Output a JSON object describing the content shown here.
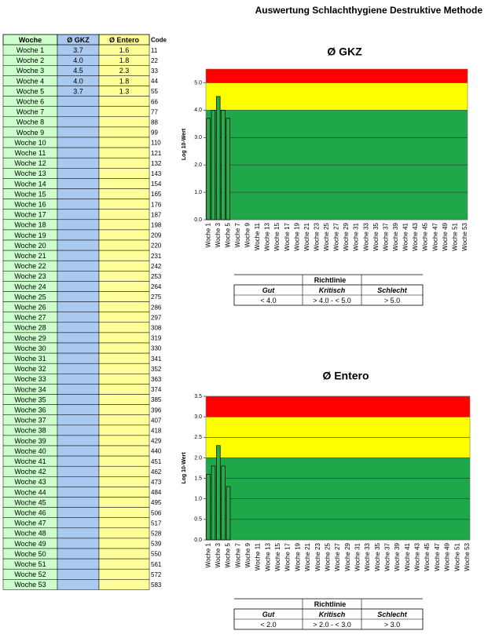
{
  "title": "Auswertung Schlachthygiene Destruktive Methode",
  "table": {
    "headers": [
      "Woche",
      "Ø GKZ",
      "Ø Entero",
      "Code"
    ],
    "rows": [
      [
        "Woche 1",
        "3.7",
        "1.6",
        "11"
      ],
      [
        "Woche 2",
        "4.0",
        "1.8",
        "22"
      ],
      [
        "Woche 3",
        "4.5",
        "2.3",
        "33"
      ],
      [
        "Woche 4",
        "4.0",
        "1.8",
        "44"
      ],
      [
        "Woche 5",
        "3.7",
        "1.3",
        "55"
      ],
      [
        "Woche 6",
        null,
        null,
        "66"
      ],
      [
        "Woche 7",
        null,
        null,
        "77"
      ],
      [
        "Woche 8",
        null,
        null,
        "88"
      ],
      [
        "Woche 9",
        null,
        null,
        "99"
      ],
      [
        "Woche 10",
        null,
        null,
        "110"
      ],
      [
        "Woche 11",
        null,
        null,
        "121"
      ],
      [
        "Woche 12",
        null,
        null,
        "132"
      ],
      [
        "Woche 13",
        null,
        null,
        "143"
      ],
      [
        "Woche 14",
        null,
        null,
        "154"
      ],
      [
        "Woche 15",
        null,
        null,
        "165"
      ],
      [
        "Woche 16",
        null,
        null,
        "176"
      ],
      [
        "Woche 17",
        null,
        null,
        "187"
      ],
      [
        "Woche 18",
        null,
        null,
        "198"
      ],
      [
        "Woche 19",
        null,
        null,
        "209"
      ],
      [
        "Woche 20",
        null,
        null,
        "220"
      ],
      [
        "Woche 21",
        null,
        null,
        "231"
      ],
      [
        "Woche 22",
        null,
        null,
        "242"
      ],
      [
        "Woche 23",
        null,
        null,
        "253"
      ],
      [
        "Woche 24",
        null,
        null,
        "264"
      ],
      [
        "Woche 25",
        null,
        null,
        "275"
      ],
      [
        "Woche 26",
        null,
        null,
        "286"
      ],
      [
        "Woche 27",
        null,
        null,
        "297"
      ],
      [
        "Woche 28",
        null,
        null,
        "308"
      ],
      [
        "Woche 29",
        null,
        null,
        "319"
      ],
      [
        "Woche 30",
        null,
        null,
        "330"
      ],
      [
        "Woche 31",
        null,
        null,
        "341"
      ],
      [
        "Woche 32",
        null,
        null,
        "352"
      ],
      [
        "Woche 33",
        null,
        null,
        "363"
      ],
      [
        "Woche 34",
        null,
        null,
        "374"
      ],
      [
        "Woche 35",
        null,
        null,
        "385"
      ],
      [
        "Woche 36",
        null,
        null,
        "396"
      ],
      [
        "Woche 37",
        null,
        null,
        "407"
      ],
      [
        "Woche 38",
        null,
        null,
        "418"
      ],
      [
        "Woche 39",
        null,
        null,
        "429"
      ],
      [
        "Woche 40",
        null,
        null,
        "440"
      ],
      [
        "Woche 41",
        null,
        null,
        "451"
      ],
      [
        "Woche 42",
        null,
        null,
        "462"
      ],
      [
        "Woche 43",
        null,
        null,
        "473"
      ],
      [
        "Woche 44",
        null,
        null,
        "484"
      ],
      [
        "Woche 45",
        null,
        null,
        "495"
      ],
      [
        "Woche 46",
        null,
        null,
        "506"
      ],
      [
        "Woche 47",
        null,
        null,
        "517"
      ],
      [
        "Woche 48",
        null,
        null,
        "528"
      ],
      [
        "Woche 49",
        null,
        null,
        "539"
      ],
      [
        "Woche 50",
        null,
        null,
        "550"
      ],
      [
        "Woche 51",
        null,
        null,
        "561"
      ],
      [
        "Woche 52",
        null,
        null,
        "572"
      ],
      [
        "Woche 53",
        null,
        null,
        "583"
      ]
    ]
  },
  "chart_data": [
    {
      "type": "bar",
      "title": "Ø GKZ",
      "y_label": "Log 10-Wert",
      "color": "#2eaa4e",
      "categories": [
        "Woche 1",
        null,
        "Woche 3",
        null,
        "Woche 5",
        null,
        "Woche 7",
        null,
        "Woche 9",
        null,
        "Woche 11",
        null,
        "Woche 13",
        null,
        "Woche 15",
        null,
        "Woche 17",
        null,
        "Woche 19",
        null,
        "Woche 21",
        null,
        "Woche 23",
        null,
        "Woche 25",
        null,
        "Woche 27",
        null,
        "Woche 29",
        null,
        "Woche 31",
        null,
        "Woche 33",
        null,
        "Woche 35",
        null,
        "Woche 37",
        null,
        "Woche 39",
        null,
        "Woche 41",
        null,
        "Woche 43",
        null,
        "Woche 45",
        null,
        "Woche 47",
        null,
        "Woche 49",
        null,
        "Woche 51",
        null,
        "Woche 53"
      ],
      "values": [
        3.7,
        4.0,
        4.5,
        4.0,
        3.7,
        null,
        null,
        null,
        null,
        null,
        null,
        null,
        null,
        null,
        null,
        null,
        null,
        null,
        null,
        null,
        null,
        null,
        null,
        null,
        null,
        null,
        null,
        null,
        null,
        null,
        null,
        null,
        null,
        null,
        null,
        null,
        null,
        null,
        null,
        null,
        null,
        null,
        null,
        null,
        null,
        null,
        null,
        null,
        null,
        null,
        null,
        null,
        null
      ],
      "ylim": [
        0,
        5.5
      ],
      "yticks": [
        {
          "value": 0,
          "label": "0.0"
        },
        {
          "value": 1,
          "label": "1.0"
        },
        {
          "value": 2,
          "label": "2.0"
        },
        {
          "value": 3,
          "label": "3.0"
        },
        {
          "value": 4,
          "label": "4.0"
        },
        {
          "value": 5,
          "label": "5.0"
        }
      ],
      "bands": [
        {
          "from": 0,
          "to": 4,
          "color": "#1ea84a"
        },
        {
          "from": 4,
          "to": 5,
          "color": "#ffff00"
        },
        {
          "from": 5,
          "to": 5.5,
          "color": "#ff0000"
        }
      ],
      "guideline": {
        "title": "Richtlinie",
        "headers": [
          "Gut",
          "Kritisch",
          "Schlecht"
        ],
        "values": [
          "< 4.0",
          "> 4.0  - < 5.0",
          "> 5.0"
        ]
      }
    },
    {
      "type": "bar",
      "title": "Ø Entero",
      "y_label": "Log 10-Wert",
      "color": "#2eaa4e",
      "categories": [
        "Woche 1",
        null,
        "Woche 3",
        null,
        "Woche 5",
        null,
        "Woche 7",
        null,
        "Woche 9",
        null,
        "Woche 11",
        null,
        "Woche 13",
        null,
        "Woche 15",
        null,
        "Woche 17",
        null,
        "Woche 19",
        null,
        "Woche 21",
        null,
        "Woche 23",
        null,
        "Woche 25",
        null,
        "Woche 27",
        null,
        "Woche 29",
        null,
        "Woche 31",
        null,
        "Woche 33",
        null,
        "Woche 35",
        null,
        "Woche 37",
        null,
        "Woche 39",
        null,
        "Woche 41",
        null,
        "Woche 43",
        null,
        "Woche 45",
        null,
        "Woche 47",
        null,
        "Woche 49",
        null,
        "Woche 51",
        null,
        "Woche 53"
      ],
      "values": [
        1.6,
        1.8,
        2.3,
        1.8,
        1.3,
        null,
        null,
        null,
        null,
        null,
        null,
        null,
        null,
        null,
        null,
        null,
        null,
        null,
        null,
        null,
        null,
        null,
        null,
        null,
        null,
        null,
        null,
        null,
        null,
        null,
        null,
        null,
        null,
        null,
        null,
        null,
        null,
        null,
        null,
        null,
        null,
        null,
        null,
        null,
        null,
        null,
        null,
        null,
        null,
        null,
        null,
        null,
        null
      ],
      "ylim": [
        0,
        3.5
      ],
      "yticks": [
        {
          "value": 0,
          "label": "0.0"
        },
        {
          "value": 0.5,
          "label": "0.5"
        },
        {
          "value": 1,
          "label": "1.0"
        },
        {
          "value": 1.5,
          "label": "1.5"
        },
        {
          "value": 2,
          "label": "2.0"
        },
        {
          "value": 2.5,
          "label": "2.5"
        },
        {
          "value": 3,
          "label": "3.0"
        },
        {
          "value": 3.5,
          "label": "3.5"
        }
      ],
      "bands": [
        {
          "from": 0,
          "to": 2,
          "color": "#1ea84a"
        },
        {
          "from": 2,
          "to": 3,
          "color": "#ffff00"
        },
        {
          "from": 3,
          "to": 3.5,
          "color": "#ff0000"
        }
      ],
      "guideline": {
        "title": "Richtlinie",
        "headers": [
          "Gut",
          "Kritisch",
          "Schlecht"
        ],
        "values": [
          "< 2.0",
          "> 2.0  - < 3.0",
          "> 3.0"
        ]
      }
    }
  ]
}
